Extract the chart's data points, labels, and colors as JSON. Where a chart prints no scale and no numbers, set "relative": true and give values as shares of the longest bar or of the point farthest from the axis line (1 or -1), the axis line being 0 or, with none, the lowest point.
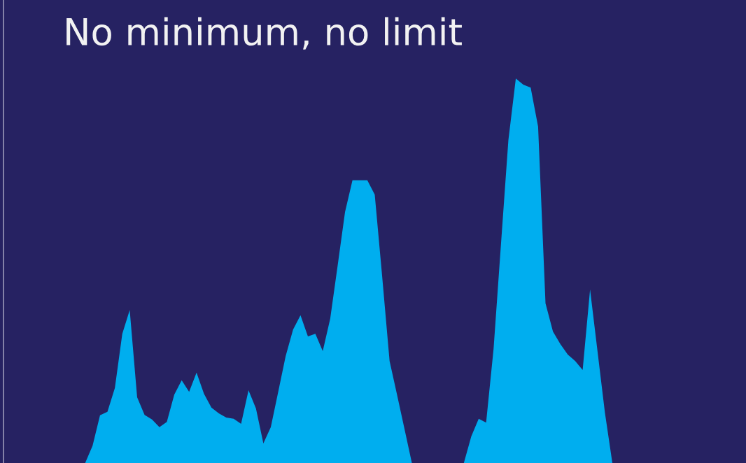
{
  "chart_data": {
    "type": "area",
    "title": "No minimum, no limit",
    "relative": true,
    "color": "#00aeef",
    "categories": [
      null,
      null,
      null,
      null,
      null,
      null,
      null,
      null,
      null,
      null,
      null,
      null,
      null,
      null,
      null,
      null,
      null,
      null,
      null,
      null,
      null,
      null,
      null,
      null,
      null,
      null,
      null,
      null,
      null,
      null,
      null,
      null,
      null,
      null,
      null,
      null,
      null,
      null,
      null,
      null,
      null,
      null,
      null,
      null,
      null,
      null,
      null,
      null,
      null,
      null,
      null,
      null,
      null,
      null,
      null,
      null,
      null,
      null,
      null,
      null,
      null,
      null,
      null,
      null,
      null,
      null,
      null,
      null,
      null,
      null,
      null,
      null,
      null,
      null,
      null,
      null,
      null,
      null,
      null,
      null,
      null,
      null,
      null,
      null,
      null,
      null,
      null,
      null,
      null,
      null,
      null,
      null,
      null,
      null,
      null,
      null,
      null,
      null,
      null,
      null,
      null
    ],
    "values": [
      0,
      0,
      0,
      0,
      0,
      0,
      0,
      0,
      0,
      0,
      0,
      0,
      0.045,
      0.124,
      0.133,
      0.195,
      0.336,
      0.398,
      0.171,
      0.125,
      0.113,
      0.093,
      0.107,
      0.178,
      0.215,
      0.185,
      0.235,
      0.18,
      0.144,
      0.129,
      0.118,
      0.115,
      0.102,
      0.189,
      0.142,
      0.051,
      0.093,
      0.185,
      0.278,
      0.347,
      0.384,
      0.329,
      0.336,
      0.291,
      0.375,
      0.513,
      0.653,
      0.735,
      0.735,
      0.735,
      0.698,
      0.485,
      0.265,
      0.178,
      0.089,
      0,
      0,
      0,
      0,
      0,
      0,
      0,
      0,
      0.069,
      0.115,
      0.105,
      0.296,
      0.569,
      0.84,
      1,
      0.984,
      0.976,
      0.875,
      0.415,
      0.342,
      0.309,
      0.282,
      0.265,
      0.242,
      0.451,
      0.291,
      0.131,
      0,
      0,
      0,
      0,
      0,
      0,
      0,
      0,
      0,
      0,
      0,
      0,
      0,
      0,
      0,
      0,
      0,
      0,
      0
    ],
    "grid": false,
    "legend": false
  }
}
